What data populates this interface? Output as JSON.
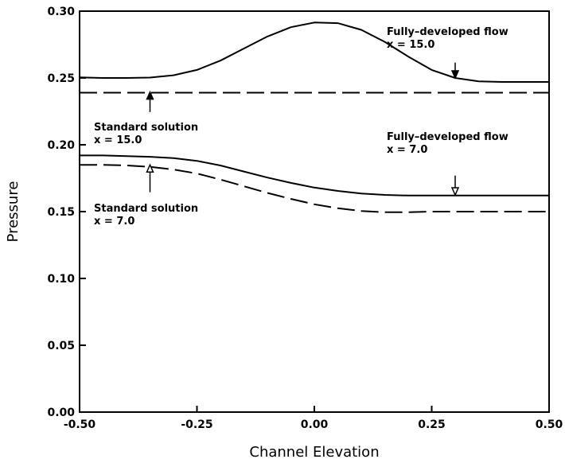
{
  "chart_data": {
    "type": "line",
    "title": "",
    "xlabel": "Channel Elevation",
    "ylabel": "Pressure",
    "xlim": [
      -0.5,
      0.5
    ],
    "ylim": [
      0.0,
      0.3
    ],
    "x_ticks": [
      "-0.50",
      "-0.25",
      "0.00",
      "0.25",
      "0.50"
    ],
    "y_ticks": [
      "0.00",
      "0.05",
      "0.10",
      "0.15",
      "0.20",
      "0.25",
      "0.30"
    ],
    "grid": false,
    "legend": "none",
    "series": [
      {
        "style": "solid",
        "x": [
          -0.5,
          -0.45,
          -0.4,
          -0.35,
          -0.3,
          -0.25,
          -0.2,
          -0.15,
          -0.1,
          -0.05,
          0.0,
          0.05,
          0.1,
          0.15,
          0.2,
          0.25,
          0.3,
          0.35,
          0.4,
          0.45,
          0.5
        ],
        "y": [
          0.2505,
          0.25,
          0.25,
          0.2503,
          0.252,
          0.256,
          0.263,
          0.272,
          0.281,
          0.288,
          0.2915,
          0.291,
          0.286,
          0.277,
          0.266,
          0.256,
          0.25,
          0.2475,
          0.247,
          0.247,
          0.247
        ]
      },
      {
        "style": "dashed",
        "x": [
          -0.5,
          0.5
        ],
        "y": [
          0.239,
          0.239
        ]
      },
      {
        "style": "solid",
        "x": [
          -0.5,
          -0.45,
          -0.4,
          -0.35,
          -0.3,
          -0.25,
          -0.2,
          -0.15,
          -0.1,
          -0.05,
          0.0,
          0.05,
          0.1,
          0.15,
          0.2,
          0.25,
          0.3,
          0.35,
          0.4,
          0.45,
          0.5
        ],
        "y": [
          0.192,
          0.192,
          0.1915,
          0.191,
          0.19,
          0.188,
          0.1845,
          0.18,
          0.1755,
          0.1715,
          0.168,
          0.1655,
          0.1635,
          0.1625,
          0.162,
          0.162,
          0.162,
          0.162,
          0.162,
          0.162,
          0.162
        ]
      },
      {
        "style": "dashed",
        "x": [
          -0.5,
          -0.45,
          -0.4,
          -0.35,
          -0.3,
          -0.25,
          -0.2,
          -0.15,
          -0.1,
          -0.05,
          0.0,
          0.05,
          0.1,
          0.15,
          0.2,
          0.25,
          0.3,
          0.35,
          0.4,
          0.45,
          0.5
        ],
        "y": [
          0.185,
          0.185,
          0.1845,
          0.1835,
          0.1815,
          0.1785,
          0.174,
          0.169,
          0.164,
          0.1595,
          0.1555,
          0.1525,
          0.1505,
          0.1495,
          0.1495,
          0.15,
          0.15,
          0.15,
          0.15,
          0.15,
          0.15
        ]
      }
    ],
    "annotations": [
      {
        "lines": [
          "Fully–developed flow",
          "x = 15.0"
        ],
        "arrow": {
          "x": 0.3,
          "y_from": 0.2615,
          "y_to": 0.25,
          "head": "filled"
        }
      },
      {
        "lines": [
          "Standard solution",
          "x = 15.0"
        ],
        "arrow": {
          "x": -0.35,
          "y_from": 0.2245,
          "y_to": 0.2395,
          "head": "filled"
        }
      },
      {
        "lines": [
          "Fully–developed flow",
          "x = 7.0"
        ],
        "arrow": {
          "x": 0.3,
          "y_from": 0.177,
          "y_to": 0.1625,
          "head": "open"
        }
      },
      {
        "lines": [
          "Standard solution",
          "x = 7.0"
        ],
        "arrow": {
          "x": -0.35,
          "y_from": 0.1645,
          "y_to": 0.185,
          "head": "open"
        }
      }
    ]
  }
}
